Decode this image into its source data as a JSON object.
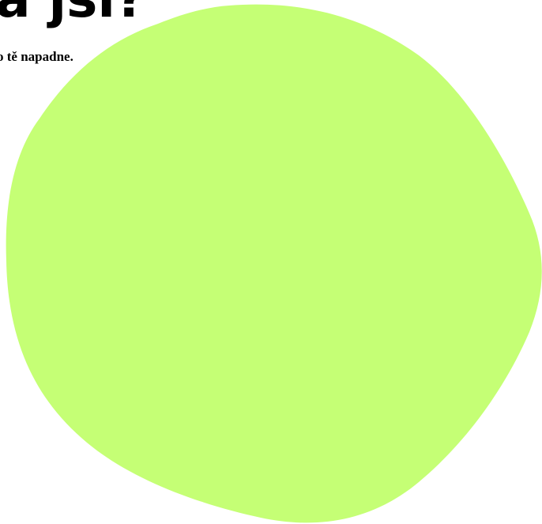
{
  "heading": {
    "text": "a jsi?"
  },
  "subheading": {
    "text": "o tě napadne."
  },
  "colors": {
    "blob": "#c5ff75",
    "text": "#000000",
    "background": "#ffffff"
  }
}
